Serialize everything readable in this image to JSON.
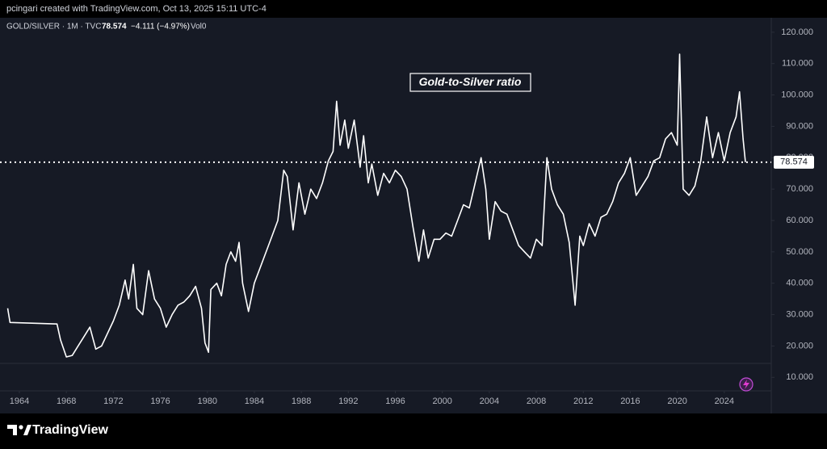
{
  "chart_data": {
    "type": "line",
    "header": "pcingari created with TradingView.com, Oct 13, 2025 15:11 UTC-4",
    "legend": {
      "symbol": "GOLD/SILVER · 1M · TVC",
      "price": "78.574",
      "change": "−4.111 (−4.97%)",
      "volume": "Vol0"
    },
    "annotation": "Gold-to-Silver ratio",
    "brand": "TradingView",
    "x": [
      1963.0,
      1963.2,
      1967.2,
      1967.5,
      1968.0,
      1968.5,
      1969.0,
      1969.5,
      1970.0,
      1970.5,
      1971.0,
      1971.5,
      1972.0,
      1972.5,
      1973.0,
      1973.3,
      1973.7,
      1974.0,
      1974.5,
      1975.0,
      1975.5,
      1976.0,
      1976.5,
      1977.0,
      1977.5,
      1978.0,
      1978.5,
      1979.0,
      1979.5,
      1979.8,
      1980.1,
      1980.3,
      1980.8,
      1981.2,
      1981.6,
      1982.0,
      1982.4,
      1982.7,
      1983.0,
      1983.5,
      1984.0,
      1984.5,
      1985.0,
      1985.5,
      1986.0,
      1986.5,
      1986.8,
      1987.3,
      1987.8,
      1988.3,
      1988.8,
      1989.3,
      1989.8,
      1990.3,
      1990.7,
      1991.0,
      1991.3,
      1991.7,
      1992.0,
      1992.5,
      1993.0,
      1993.3,
      1993.7,
      1994.0,
      1994.5,
      1995.0,
      1995.5,
      1996.0,
      1996.5,
      1997.0,
      1997.5,
      1998.0,
      1998.4,
      1998.8,
      1999.3,
      1999.8,
      2000.3,
      2000.8,
      2001.3,
      2001.8,
      2002.3,
      2002.8,
      2003.3,
      2003.7,
      2004.0,
      2004.5,
      2005.0,
      2005.5,
      2006.0,
      2006.5,
      2007.0,
      2007.5,
      2008.0,
      2008.5,
      2008.9,
      2009.3,
      2009.8,
      2010.3,
      2010.8,
      2011.3,
      2011.7,
      2012.0,
      2012.5,
      2013.0,
      2013.5,
      2014.0,
      2014.5,
      2015.0,
      2015.5,
      2016.0,
      2016.5,
      2017.0,
      2017.5,
      2018.0,
      2018.5,
      2019.0,
      2019.5,
      2020.0,
      2020.2,
      2020.5,
      2021.0,
      2021.5,
      2022.0,
      2022.5,
      2023.0,
      2023.5,
      2024.0,
      2024.5,
      2025.0,
      2025.3,
      2025.6,
      2025.8
    ],
    "series": [
      {
        "name": "GOLD/SILVER",
        "color": "#ffffff",
        "values": [
          32,
          27.5,
          27,
          22,
          16.5,
          17,
          20,
          23,
          26,
          19,
          20,
          24,
          28,
          33,
          41,
          35,
          46,
          32,
          30,
          44,
          35,
          32,
          26,
          30,
          33,
          34,
          36,
          39,
          32,
          21,
          18,
          38,
          40,
          36,
          46,
          50,
          47,
          53,
          40,
          31,
          40,
          45,
          50,
          55,
          60,
          76,
          74,
          57,
          72,
          62,
          70,
          67,
          72,
          79,
          82,
          98,
          84,
          92,
          83,
          92,
          77,
          87,
          72,
          78,
          68,
          75,
          72,
          76,
          74,
          70,
          58,
          47,
          57,
          48,
          54,
          54,
          56,
          55,
          60,
          65,
          64,
          72,
          80,
          70,
          54,
          66,
          63,
          62,
          57,
          52,
          50,
          48,
          54,
          52,
          80,
          70,
          65,
          62,
          53,
          33,
          55,
          52,
          59,
          55,
          61,
          62,
          66,
          72,
          75,
          80,
          68,
          71,
          74,
          79,
          80,
          86,
          88,
          84,
          113,
          70,
          68,
          71,
          79,
          93,
          80,
          88,
          79,
          88,
          93,
          101,
          86,
          78.574
        ]
      }
    ],
    "xlim": [
      1962.35,
      2028
    ],
    "xticks": [
      1964,
      1968,
      1972,
      1976,
      1980,
      1984,
      1988,
      1992,
      1996,
      2000,
      2004,
      2008,
      2012,
      2016,
      2020,
      2024
    ],
    "ylim": [
      5.7,
      124.6
    ],
    "yticks": [
      {
        "value": 10,
        "label": "10.000"
      },
      {
        "value": 20,
        "label": "20.000"
      },
      {
        "value": 30,
        "label": "30.000"
      },
      {
        "value": 40,
        "label": "40.000"
      },
      {
        "value": 50,
        "label": "50.000"
      },
      {
        "value": 60,
        "label": "60.000"
      },
      {
        "value": 70,
        "label": "70.000"
      },
      {
        "value": 80,
        "label": "80.000"
      },
      {
        "value": 90,
        "label": "90.000"
      },
      {
        "value": 100,
        "label": "100.000"
      },
      {
        "value": 110,
        "label": "110.000"
      },
      {
        "value": 120,
        "label": "120.000"
      }
    ]
  }
}
